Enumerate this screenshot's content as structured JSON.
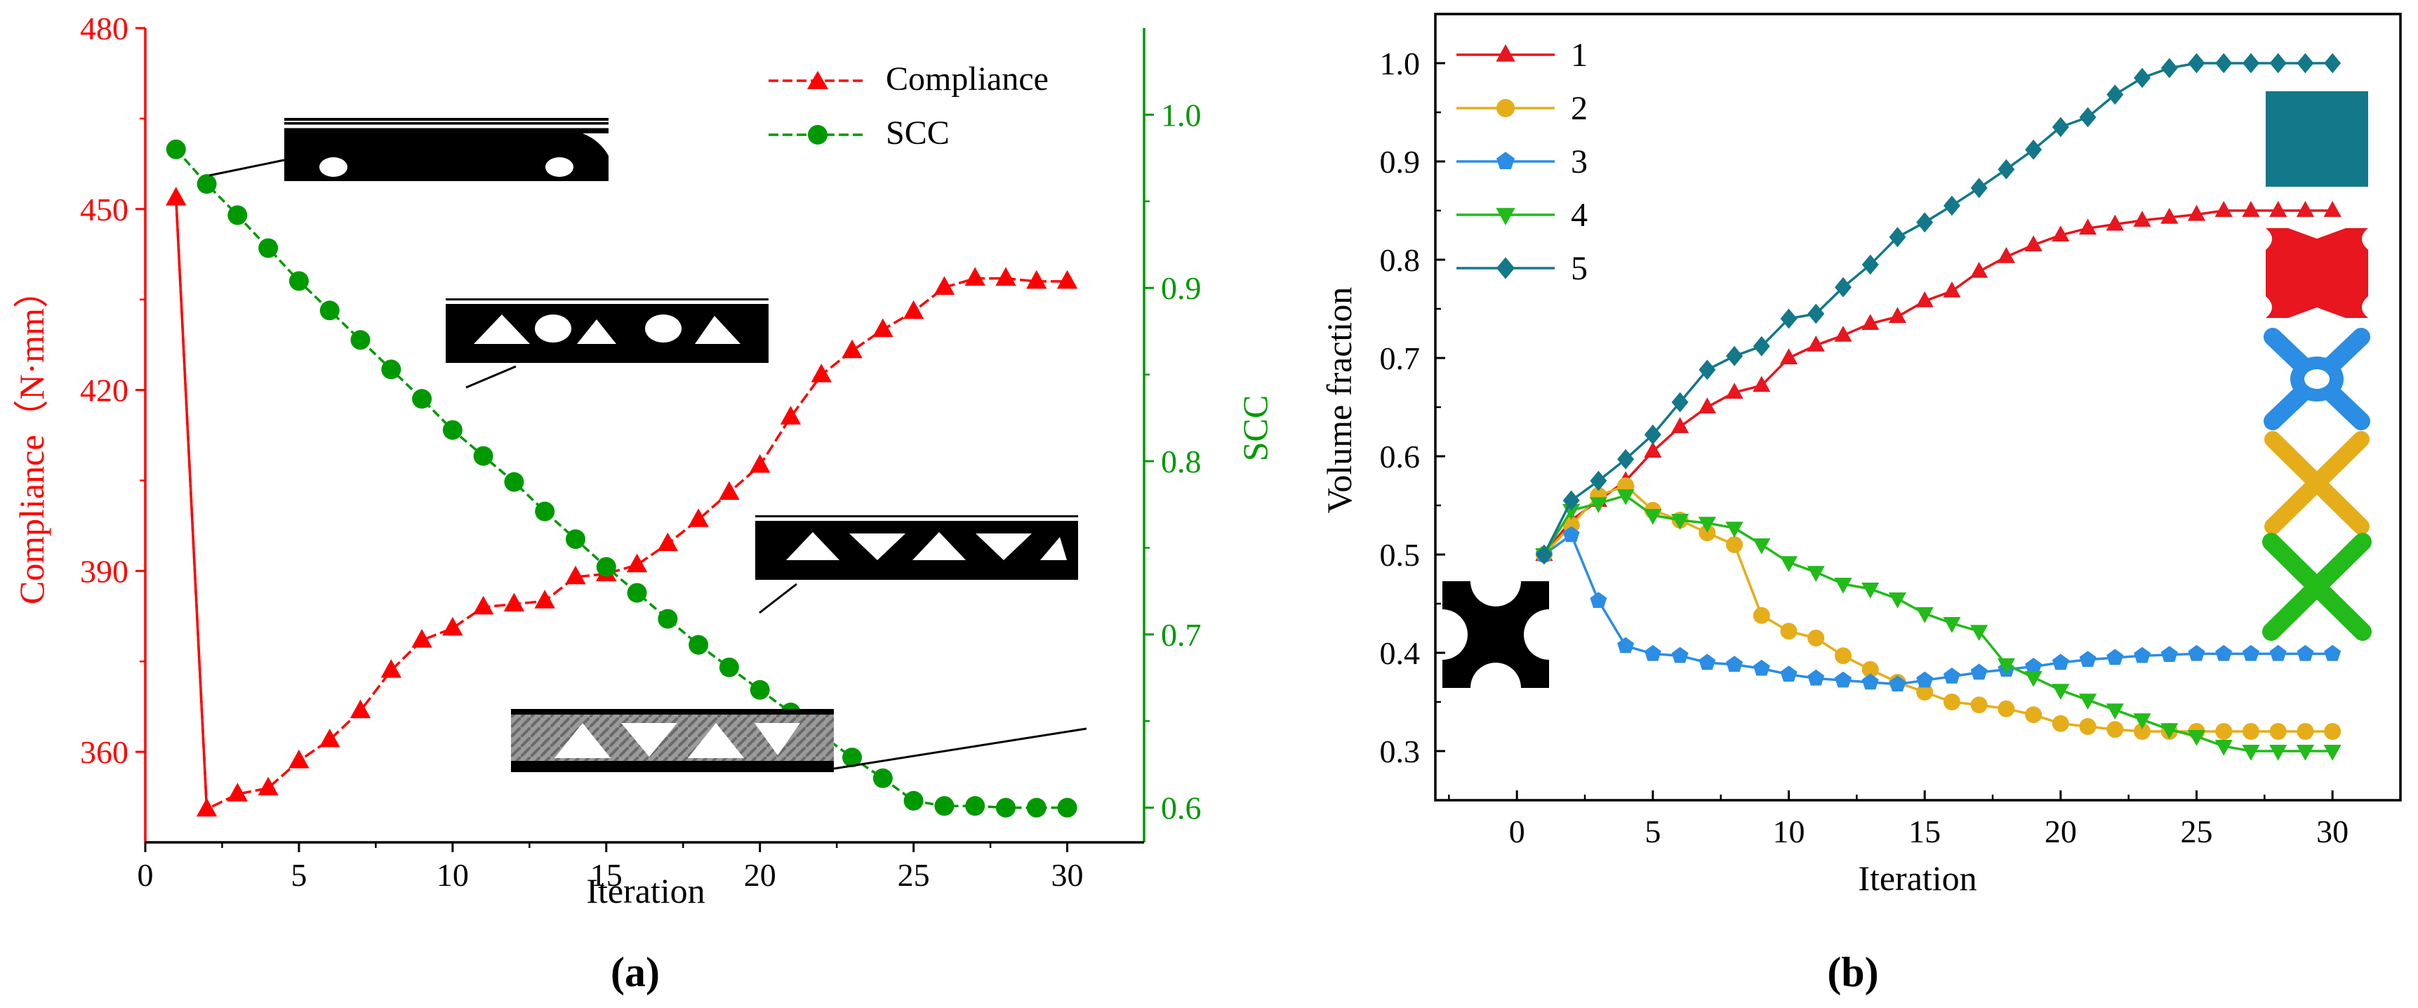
{
  "chart_data": [
    {
      "type": "line",
      "panel_label": "(a)",
      "xlabel": "Iteration",
      "xlim": [
        0,
        32.5
      ],
      "x_ticks": [
        0,
        5,
        10,
        15,
        20,
        25,
        30
      ],
      "y_left": {
        "label": "Compliance（N·mm）",
        "lim": [
          345,
          480
        ],
        "ticks": [
          360,
          390,
          420,
          450,
          480
        ],
        "color": "#ff0000"
      },
      "y_right": {
        "label": "SCC",
        "lim": [
          0.58,
          1.05
        ],
        "ticks": [
          0.6,
          0.7,
          0.8,
          0.9,
          1.0
        ],
        "tick_labels": [
          "0.6",
          "0.7",
          "0.8",
          "0.9",
          "1.0"
        ],
        "color": "#009900"
      },
      "legend_position": "top-right",
      "series": [
        {
          "name": "Compliance",
          "axis": "left",
          "color": "#ff0000",
          "marker": "triangle-up",
          "x": [
            1,
            2,
            3,
            4,
            5,
            6,
            7,
            8,
            9,
            10,
            11,
            12,
            13,
            14,
            15,
            16,
            17,
            18,
            19,
            20,
            21,
            22,
            23,
            24,
            25,
            26,
            27,
            28,
            29,
            30
          ],
          "values": [
            451.8,
            350.5,
            353,
            354,
            358.5,
            362,
            366.8,
            373.5,
            378.5,
            380.5,
            384,
            384.5,
            385,
            389,
            389.5,
            391,
            394.5,
            398.5,
            403,
            407.5,
            415.5,
            422.5,
            426.5,
            430,
            433,
            437,
            438.5,
            438.5,
            438,
            438
          ]
        },
        {
          "name": "SCC",
          "axis": "right",
          "color": "#009900",
          "marker": "circle",
          "x": [
            1,
            2,
            3,
            4,
            5,
            6,
            7,
            8,
            9,
            10,
            11,
            12,
            13,
            14,
            15,
            16,
            17,
            18,
            19,
            20,
            21,
            22,
            23,
            24,
            25,
            26,
            27,
            28,
            29,
            30
          ],
          "values": [
            0.98,
            0.96,
            0.942,
            0.923,
            0.904,
            0.887,
            0.87,
            0.853,
            0.836,
            0.818,
            0.803,
            0.788,
            0.771,
            0.755,
            0.739,
            0.724,
            0.709,
            0.694,
            0.681,
            0.668,
            0.655,
            0.642,
            0.629,
            0.617,
            0.604,
            0.601,
            0.601,
            0.6,
            0.6,
            0.6
          ]
        }
      ]
    },
    {
      "type": "line",
      "panel_label": "(b)",
      "xlabel": "Iteration",
      "ylabel": "Volume fraction",
      "xlim": [
        -3,
        32.5
      ],
      "ylim": [
        0.25,
        1.05
      ],
      "x_ticks": [
        0,
        5,
        10,
        15,
        20,
        25,
        30
      ],
      "y_ticks": [
        0.3,
        0.4,
        0.5,
        0.6,
        0.7,
        0.8,
        0.9,
        1.0
      ],
      "y_tick_labels": [
        "0.3",
        "0.4",
        "0.5",
        "0.6",
        "0.7",
        "0.8",
        "0.9",
        "1.0"
      ],
      "legend_position": "top-left",
      "series": [
        {
          "name": "1",
          "color": "#e8161e",
          "marker": "triangle-up",
          "x": [
            1,
            2,
            3,
            4,
            5,
            6,
            7,
            8,
            9,
            10,
            11,
            12,
            13,
            14,
            15,
            16,
            17,
            18,
            19,
            20,
            21,
            22,
            23,
            24,
            25,
            26,
            27,
            28,
            29,
            30
          ],
          "values": [
            0.5,
            0.535,
            0.555,
            0.575,
            0.605,
            0.63,
            0.65,
            0.665,
            0.672,
            0.7,
            0.713,
            0.723,
            0.735,
            0.742,
            0.758,
            0.768,
            0.788,
            0.803,
            0.815,
            0.825,
            0.832,
            0.836,
            0.84,
            0.843,
            0.846,
            0.85,
            0.85,
            0.85,
            0.85,
            0.85
          ]
        },
        {
          "name": "2",
          "color": "#e6ad1a",
          "marker": "circle",
          "x": [
            1,
            2,
            3,
            4,
            5,
            6,
            7,
            8,
            9,
            10,
            11,
            12,
            13,
            14,
            15,
            16,
            17,
            18,
            19,
            20,
            21,
            22,
            23,
            24,
            25,
            26,
            27,
            28,
            29,
            30
          ],
          "values": [
            0.5,
            0.53,
            0.56,
            0.57,
            0.545,
            0.535,
            0.522,
            0.51,
            0.438,
            0.422,
            0.415,
            0.397,
            0.383,
            0.37,
            0.36,
            0.35,
            0.347,
            0.343,
            0.337,
            0.328,
            0.325,
            0.322,
            0.32,
            0.32,
            0.32,
            0.32,
            0.32,
            0.32,
            0.32,
            0.32
          ]
        },
        {
          "name": "3",
          "color": "#2b8de3",
          "marker": "pentagon",
          "x": [
            1,
            2,
            3,
            4,
            5,
            6,
            7,
            8,
            9,
            10,
            11,
            12,
            13,
            14,
            15,
            16,
            17,
            18,
            19,
            20,
            21,
            22,
            23,
            24,
            25,
            26,
            27,
            28,
            29,
            30
          ],
          "values": [
            0.5,
            0.52,
            0.453,
            0.407,
            0.399,
            0.397,
            0.39,
            0.388,
            0.384,
            0.378,
            0.374,
            0.372,
            0.37,
            0.368,
            0.372,
            0.376,
            0.38,
            0.383,
            0.386,
            0.39,
            0.393,
            0.395,
            0.397,
            0.398,
            0.399,
            0.399,
            0.399,
            0.399,
            0.399,
            0.399
          ]
        },
        {
          "name": "4",
          "color": "#22bb1a",
          "marker": "triangle-down",
          "x": [
            1,
            2,
            3,
            4,
            5,
            6,
            7,
            8,
            9,
            10,
            11,
            12,
            13,
            14,
            15,
            16,
            17,
            18,
            19,
            20,
            21,
            22,
            23,
            24,
            25,
            26,
            27,
            28,
            29,
            30
          ],
          "values": [
            0.5,
            0.545,
            0.552,
            0.56,
            0.54,
            0.535,
            0.532,
            0.527,
            0.51,
            0.492,
            0.482,
            0.47,
            0.465,
            0.455,
            0.44,
            0.43,
            0.422,
            0.388,
            0.375,
            0.362,
            0.352,
            0.342,
            0.332,
            0.322,
            0.315,
            0.305,
            0.3,
            0.3,
            0.3,
            0.3
          ]
        },
        {
          "name": "5",
          "color": "#137889",
          "marker": "diamond",
          "x": [
            1,
            2,
            3,
            4,
            5,
            6,
            7,
            8,
            9,
            10,
            11,
            12,
            13,
            14,
            15,
            16,
            17,
            18,
            19,
            20,
            21,
            22,
            23,
            24,
            25,
            26,
            27,
            28,
            29,
            30
          ],
          "values": [
            0.5,
            0.555,
            0.575,
            0.597,
            0.622,
            0.655,
            0.688,
            0.702,
            0.712,
            0.74,
            0.745,
            0.772,
            0.795,
            0.823,
            0.838,
            0.855,
            0.873,
            0.892,
            0.912,
            0.935,
            0.945,
            0.968,
            0.985,
            0.995,
            1.0,
            1.0,
            1.0,
            1.0,
            1.0,
            1.0
          ]
        }
      ]
    }
  ]
}
